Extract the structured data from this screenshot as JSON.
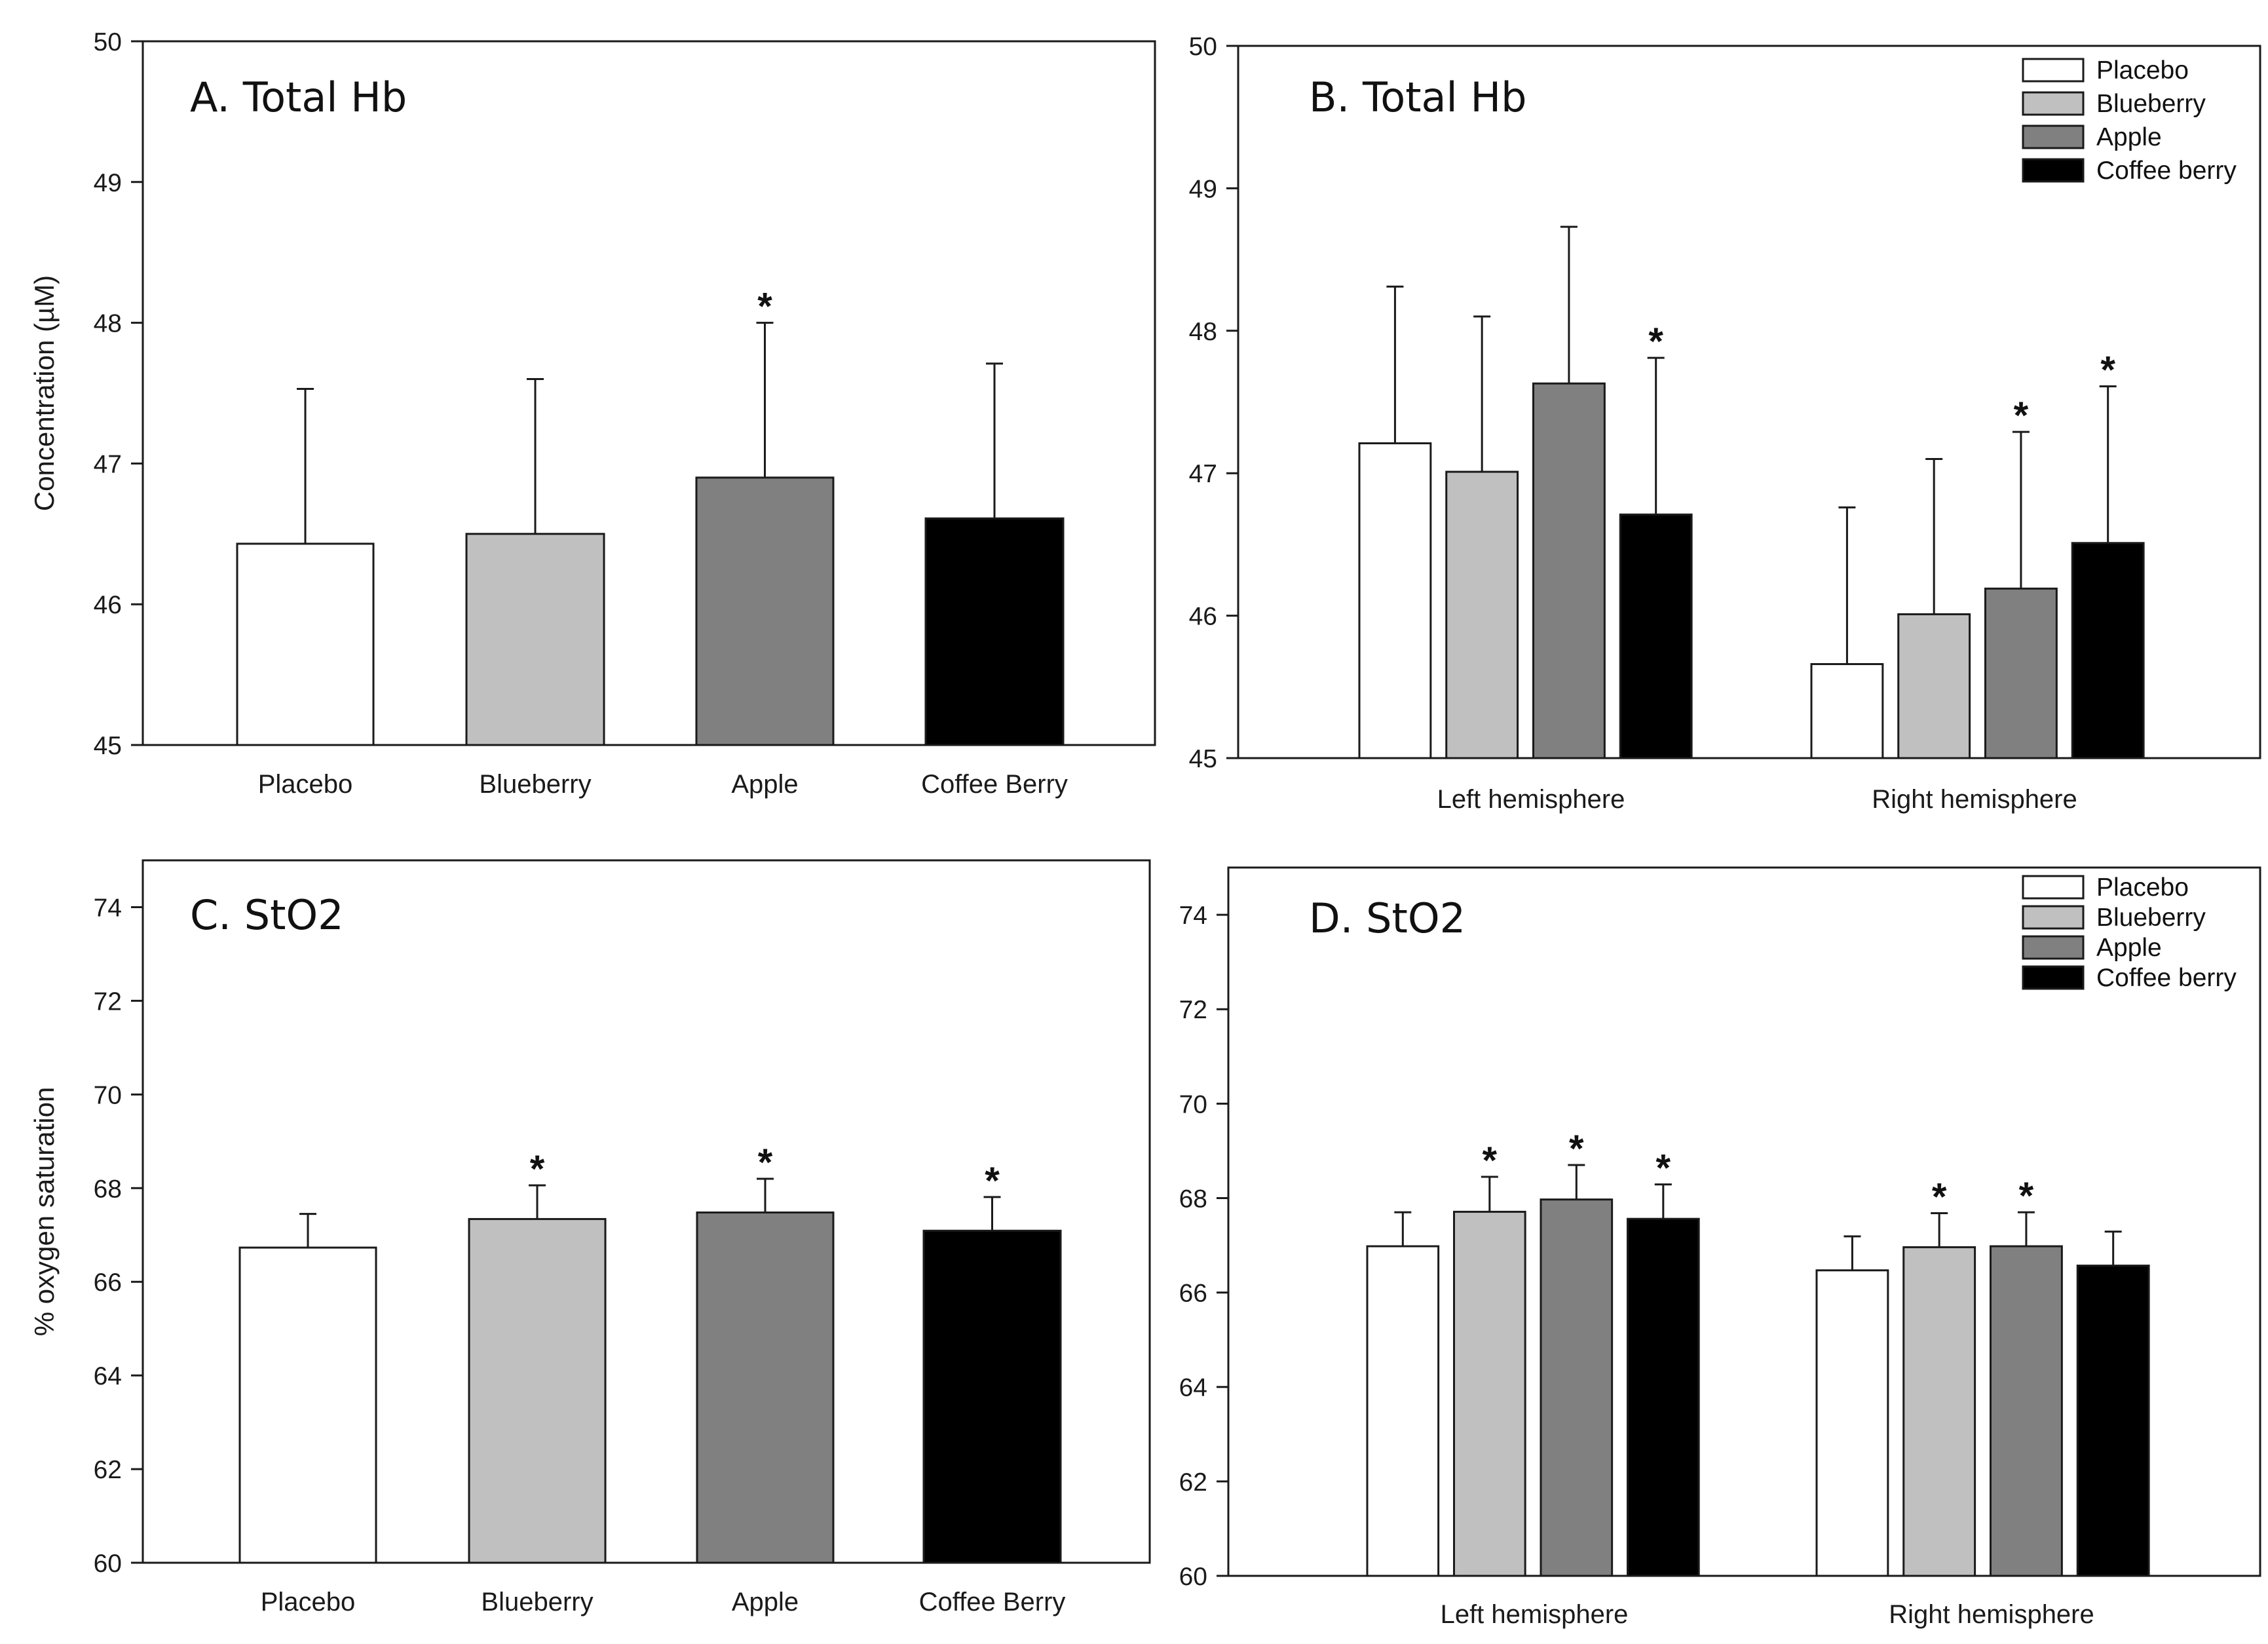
{
  "colors": {
    "Placebo": "#ffffff",
    "Blueberry": "#c0c0c0",
    "Apple": "#808080",
    "Coffee": "#000000",
    "outline": "#1a1a1a"
  },
  "chart_data": [
    {
      "id": "A",
      "type": "bar",
      "title": "A. Total Hb",
      "ylabel": "Concentration (µM)",
      "xlabel": "",
      "ylim": [
        45,
        50
      ],
      "yticks": [
        "45",
        "46",
        "47",
        "48",
        "49",
        "50"
      ],
      "grouped": false,
      "categories": [
        "Placebo",
        "Blueberry",
        "Apple",
        "Coffee Berry"
      ],
      "values": [
        46.43,
        46.5,
        46.9,
        46.61
      ],
      "errors": [
        1.1,
        1.1,
        1.1,
        1.1
      ],
      "significant": [
        false,
        false,
        true,
        false
      ],
      "series_colors": [
        "Placebo",
        "Blueberry",
        "Apple",
        "Coffee"
      ],
      "legend": null
    },
    {
      "id": "B",
      "type": "bar",
      "title": "B. Total Hb",
      "ylabel": "",
      "xlabel": "",
      "ylim": [
        45,
        50
      ],
      "yticks": [
        "45",
        "46",
        "47",
        "48",
        "49",
        "50"
      ],
      "grouped": true,
      "categories": [
        "Left hemisphere",
        "Right hemisphere"
      ],
      "series": [
        {
          "name": "Placebo",
          "color": "Placebo",
          "values": [
            47.21,
            45.66
          ],
          "errors": [
            1.1,
            1.1
          ],
          "significant": [
            false,
            false
          ]
        },
        {
          "name": "Blueberry",
          "color": "Blueberry",
          "values": [
            47.01,
            46.01
          ],
          "errors": [
            1.09,
            1.09
          ],
          "significant": [
            false,
            false
          ]
        },
        {
          "name": "Apple",
          "color": "Apple",
          "values": [
            47.63,
            46.19
          ],
          "errors": [
            1.1,
            1.1
          ],
          "significant": [
            false,
            true
          ]
        },
        {
          "name": "Coffee berry",
          "color": "Coffee",
          "values": [
            46.71,
            46.51
          ],
          "errors": [
            1.1,
            1.1
          ],
          "significant": [
            true,
            true
          ]
        }
      ],
      "legend": [
        "Placebo",
        "Blueberry",
        "Apple",
        "Coffee berry"
      ]
    },
    {
      "id": "C",
      "type": "bar",
      "title": "C. StO2",
      "ylabel": "% oxygen saturation",
      "xlabel": "",
      "ylim": [
        60,
        75
      ],
      "yticks": [
        "60",
        "62",
        "64",
        "66",
        "68",
        "70",
        "72",
        "74"
      ],
      "grouped": false,
      "categories": [
        "Placebo",
        "Blueberry",
        "Apple",
        "Coffee Berry"
      ],
      "values": [
        66.73,
        67.34,
        67.48,
        67.09
      ],
      "errors": [
        0.72,
        0.72,
        0.72,
        0.72
      ],
      "significant": [
        false,
        true,
        true,
        true
      ],
      "series_colors": [
        "Placebo",
        "Blueberry",
        "Apple",
        "Coffee"
      ],
      "legend": null
    },
    {
      "id": "D",
      "type": "bar",
      "title": "D. StO2",
      "ylabel": "",
      "xlabel": "",
      "ylim": [
        60,
        75
      ],
      "yticks": [
        "60",
        "62",
        "64",
        "66",
        "68",
        "70",
        "72",
        "74"
      ],
      "grouped": true,
      "categories": [
        "Left hemisphere",
        "Right hemisphere"
      ],
      "series": [
        {
          "name": "Placebo",
          "color": "Placebo",
          "values": [
            66.98,
            66.47
          ],
          "errors": [
            0.72,
            0.72
          ],
          "significant": [
            false,
            false
          ]
        },
        {
          "name": "Blueberry",
          "color": "Blueberry",
          "values": [
            67.71,
            66.96
          ],
          "errors": [
            0.74,
            0.72
          ],
          "significant": [
            true,
            true
          ]
        },
        {
          "name": "Apple",
          "color": "Apple",
          "values": [
            67.97,
            66.98
          ],
          "errors": [
            0.73,
            0.72
          ],
          "significant": [
            true,
            true
          ]
        },
        {
          "name": "Coffee berry",
          "color": "Coffee",
          "values": [
            67.56,
            66.57
          ],
          "errors": [
            0.73,
            0.72
          ],
          "significant": [
            true,
            false
          ]
        }
      ],
      "legend": [
        "Placebo",
        "Blueberry",
        "Apple",
        "Coffee berry"
      ]
    }
  ]
}
